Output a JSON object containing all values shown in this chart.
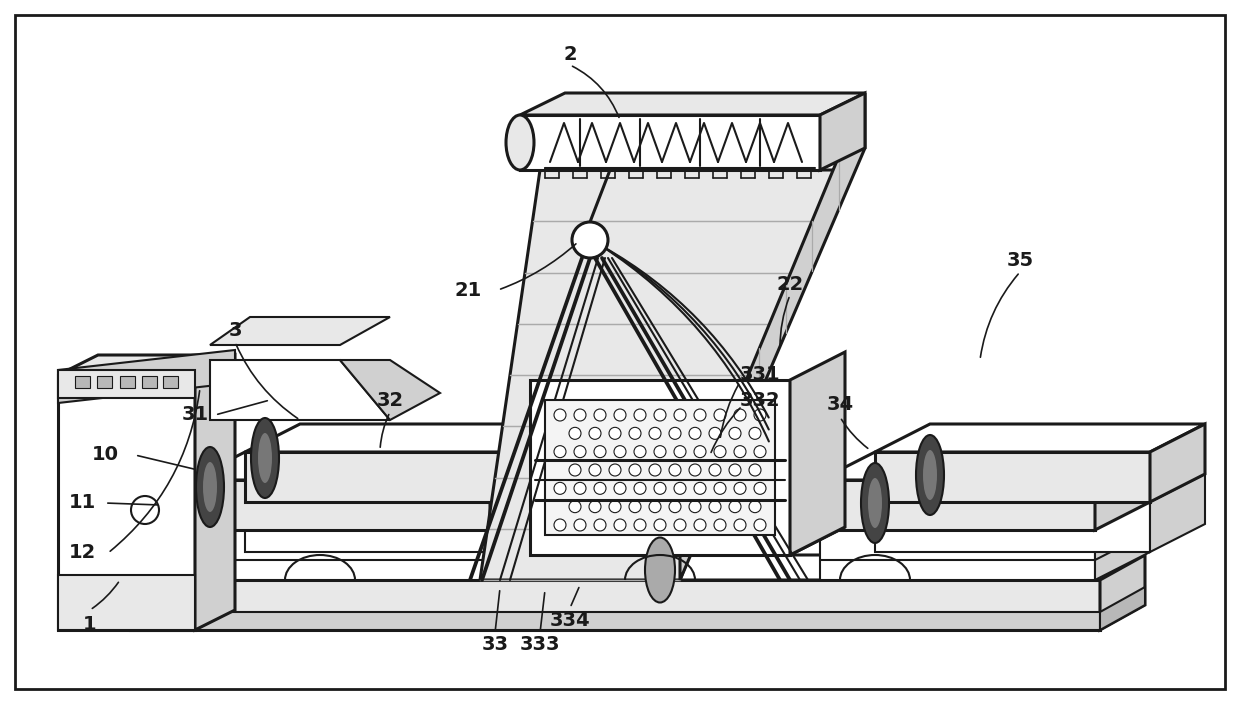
{
  "bg_color": "#ffffff",
  "line_color": "#1a1a1a",
  "lw": 1.5,
  "lw2": 2.2,
  "lw3": 2.8,
  "gray1": "#e8e8e8",
  "gray2": "#d0d0d0",
  "gray3": "#b8b8b8",
  "gray4": "#f4f4f4",
  "dark_gray": "#444444"
}
